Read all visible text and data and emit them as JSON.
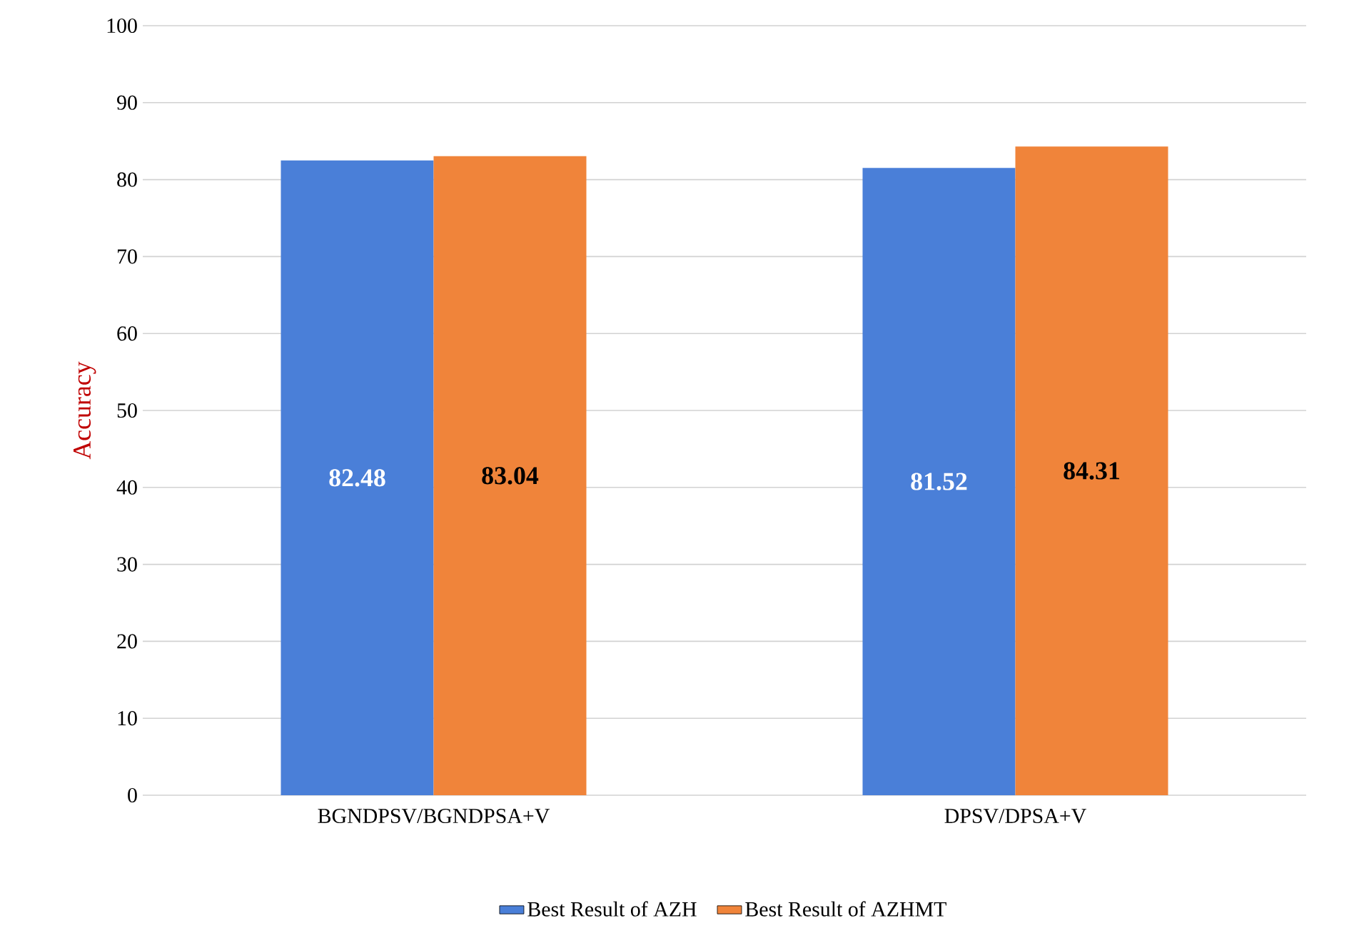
{
  "chart_data": {
    "type": "bar",
    "ylabel": "Accuracy",
    "categories": [
      "BGNDPSV/BGNDPSA+V",
      "DPSV/DPSA+V"
    ],
    "series": [
      {
        "name": "Best Result of AZH",
        "color": "#4a7fd8",
        "values": [
          82.48,
          81.52
        ]
      },
      {
        "name": "Best Result of AZHMT",
        "color": "#f0843a",
        "values": [
          83.04,
          84.31
        ]
      }
    ],
    "ylim": [
      0,
      100
    ],
    "yticks": [
      0,
      10,
      20,
      30,
      40,
      50,
      60,
      70,
      80,
      90,
      100
    ],
    "grid": "y",
    "legend": "bottom",
    "data_labels": true
  }
}
